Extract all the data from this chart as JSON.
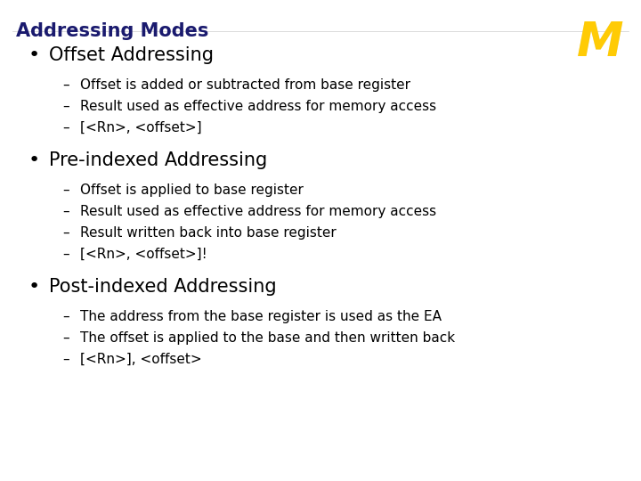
{
  "title": "Addressing Modes",
  "title_color": "#1a1a6e",
  "background_color": "#ffffff",
  "logo_color": "#FFCB05",
  "logo_outline": "#9E8B2F",
  "bullet_color": "#000000",
  "bullet_points": [
    {
      "heading": "Offset Addressing",
      "sub_items": [
        "Offset is added or subtracted from base register",
        "Result used as effective address for memory access",
        "[<Rn>, <offset>]"
      ]
    },
    {
      "heading": "Pre-indexed Addressing",
      "sub_items": [
        "Offset is applied to base register",
        "Result used as effective address for memory access",
        "Result written back into base register",
        "[<Rn>, <offset>]!"
      ]
    },
    {
      "heading": "Post-indexed Addressing",
      "sub_items": [
        "The address from the base register is used as the EA",
        "The offset is applied to the base and then written back",
        "[<Rn>], <offset>"
      ]
    }
  ],
  "heading_fontsize": 15,
  "sub_fontsize": 11,
  "title_fontsize": 15,
  "figsize": [
    7.2,
    5.4
  ],
  "dpi": 100
}
